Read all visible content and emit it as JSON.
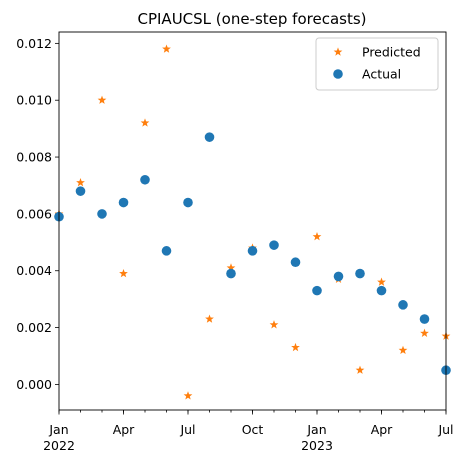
{
  "chart_data": {
    "type": "scatter",
    "title": "CPIAUCSL (one-step forecasts)",
    "xlabel": "",
    "ylabel": "",
    "x": [
      "2022-01",
      "2022-02",
      "2022-03",
      "2022-04",
      "2022-05",
      "2022-06",
      "2022-07",
      "2022-08",
      "2022-09",
      "2022-10",
      "2022-11",
      "2022-12",
      "2023-01",
      "2023-02",
      "2023-03",
      "2023-04",
      "2023-05",
      "2023-06",
      "2023-07"
    ],
    "xlim": [
      "2022-01",
      "2023-07"
    ],
    "ylim": [
      -0.0009,
      0.0124
    ],
    "yticks": [
      0.0,
      0.002,
      0.004,
      0.006,
      0.008,
      0.01,
      0.012
    ],
    "ytick_labels": [
      "0.000",
      "0.002",
      "0.004",
      "0.006",
      "0.008",
      "0.010",
      "0.012"
    ],
    "xticks": [
      {
        "x": "2022-01",
        "label": "Jan",
        "year": "2022"
      },
      {
        "x": "2022-04",
        "label": "Apr",
        "year": ""
      },
      {
        "x": "2022-07",
        "label": "Jul",
        "year": ""
      },
      {
        "x": "2022-10",
        "label": "Oct",
        "year": ""
      },
      {
        "x": "2023-01",
        "label": "Jan",
        "year": "2023"
      },
      {
        "x": "2023-04",
        "label": "Apr",
        "year": ""
      },
      {
        "x": "2023-07",
        "label": "Jul",
        "year": ""
      }
    ],
    "grid": false,
    "legend_position": "top-right",
    "series": [
      {
        "name": "Predicted",
        "marker": "star",
        "color": "#ff7f0e",
        "values": [
          0.006,
          0.0071,
          0.01,
          0.0039,
          0.0092,
          0.0118,
          -0.0004,
          0.0023,
          0.0041,
          0.0048,
          0.0021,
          0.0013,
          0.0052,
          0.0037,
          0.0005,
          0.0036,
          0.0012,
          0.0018,
          0.0017
        ]
      },
      {
        "name": "Actual",
        "marker": "circle",
        "color": "#1f77b4",
        "values": [
          0.0059,
          0.0068,
          0.006,
          0.0064,
          0.0072,
          0.0047,
          0.0064,
          0.0087,
          0.0039,
          0.0047,
          0.0049,
          0.0043,
          0.0033,
          0.0038,
          0.0039,
          0.0033,
          0.0028,
          0.0023,
          0.0005
        ]
      }
    ]
  }
}
